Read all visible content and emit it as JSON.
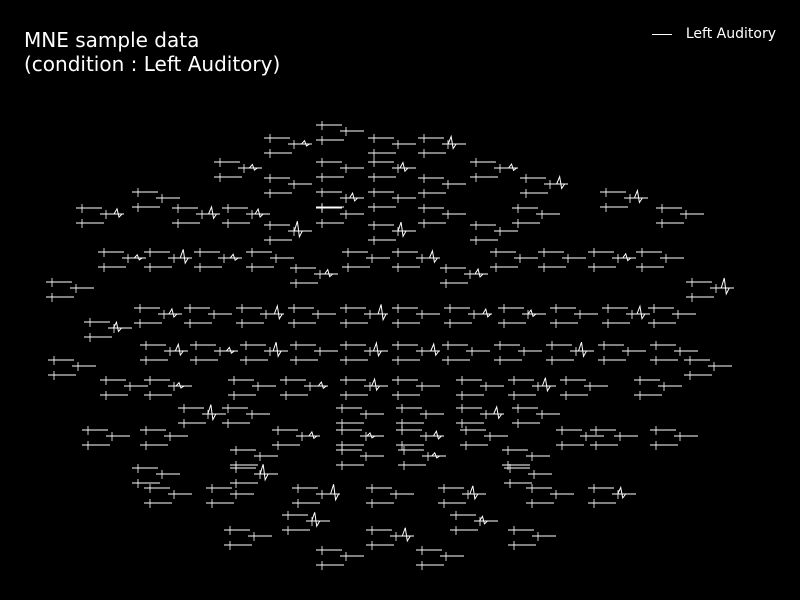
{
  "chart_data": {
    "type": "line",
    "title_line1": "MNE sample data",
    "title_line2": "(condition : Left Auditory)",
    "series": [
      {
        "name": "Left Auditory",
        "color": "#ffffff"
      }
    ],
    "layout": "sensor-topography",
    "grid": false
  },
  "colors": {
    "background": "#000000",
    "foreground": "#ffffff"
  }
}
